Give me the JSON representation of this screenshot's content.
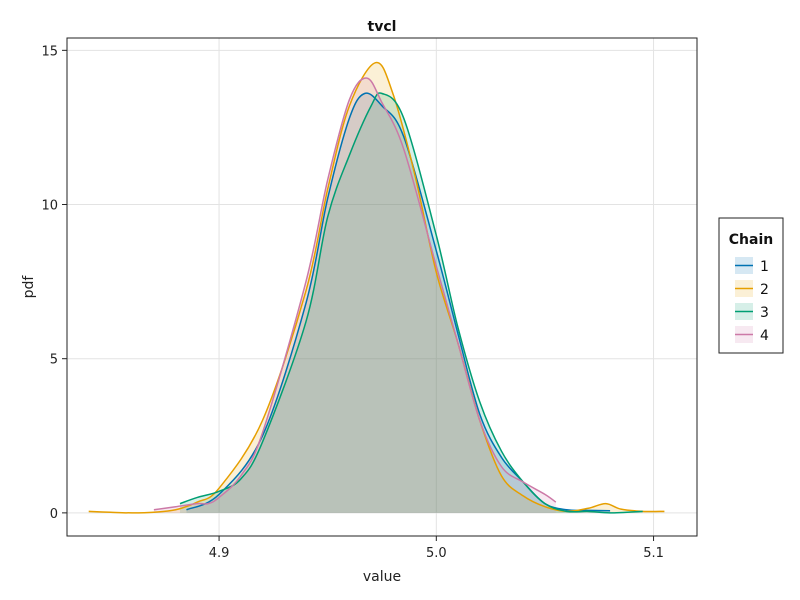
{
  "chart_data": {
    "type": "area",
    "title": "tvcl",
    "xlabel": "value",
    "ylabel": "pdf",
    "xlim": [
      4.83,
      5.12
    ],
    "ylim": [
      -0.75,
      15.4
    ],
    "xticks": [
      4.9,
      5.0,
      5.1
    ],
    "xtick_labels": [
      "4.9",
      "5.0",
      "5.1"
    ],
    "yticks": [
      0,
      5,
      10,
      15
    ],
    "ytick_labels": [
      "0",
      "5",
      "10",
      "15"
    ],
    "grid": true,
    "legend": {
      "title": "Chain",
      "placement": "right"
    },
    "series": [
      {
        "name": "1",
        "color": "#0072b2",
        "x": [
          4.885,
          4.9,
          4.92,
          4.94,
          4.95,
          4.96,
          4.967,
          4.975,
          4.985,
          5.0,
          5.01,
          5.02,
          5.03,
          5.04,
          5.05,
          5.06,
          5.07,
          5.08
        ],
        "y": [
          0.1,
          0.6,
          2.5,
          6.8,
          10.2,
          12.8,
          13.6,
          13.2,
          12.2,
          8.5,
          5.8,
          3.2,
          1.8,
          1.0,
          0.3,
          0.1,
          0.08,
          0.07
        ]
      },
      {
        "name": "2",
        "color": "#e69f00",
        "x": [
          4.84,
          4.85,
          4.86,
          4.87,
          4.88,
          4.89,
          4.9,
          4.92,
          4.94,
          4.95,
          4.96,
          4.972,
          4.98,
          4.99,
          5.0,
          5.01,
          5.02,
          5.03,
          5.04,
          5.05,
          5.06,
          5.07,
          5.078,
          5.085,
          5.095,
          5.105
        ],
        "y": [
          0.05,
          0.02,
          0.0,
          0.02,
          0.1,
          0.35,
          0.8,
          3.0,
          7.2,
          10.5,
          13.2,
          14.6,
          13.6,
          11.0,
          7.8,
          5.5,
          3.0,
          1.2,
          0.55,
          0.2,
          0.05,
          0.15,
          0.3,
          0.12,
          0.05,
          0.05
        ]
      },
      {
        "name": "3",
        "color": "#009e73",
        "x": [
          4.882,
          4.89,
          4.9,
          4.91,
          4.92,
          4.94,
          4.95,
          4.96,
          4.97,
          4.975,
          4.985,
          5.0,
          5.01,
          5.02,
          5.03,
          5.04,
          5.05,
          5.06,
          5.07,
          5.08,
          5.095
        ],
        "y": [
          0.3,
          0.5,
          0.7,
          1.1,
          2.3,
          6.2,
          9.6,
          11.6,
          13.2,
          13.6,
          12.8,
          9.0,
          6.0,
          3.6,
          2.0,
          1.0,
          0.3,
          0.05,
          0.05,
          0.0,
          0.05
        ]
      },
      {
        "name": "4",
        "color": "#cc79a7",
        "x": [
          4.87,
          4.88,
          4.89,
          4.895,
          4.9,
          4.91,
          4.92,
          4.94,
          4.95,
          4.96,
          4.968,
          4.975,
          4.985,
          5.0,
          5.01,
          5.02,
          5.03,
          5.04,
          5.05,
          5.055
        ],
        "y": [
          0.1,
          0.2,
          0.3,
          0.3,
          0.5,
          1.2,
          2.6,
          7.5,
          10.8,
          13.4,
          14.1,
          13.3,
          11.8,
          8.0,
          5.5,
          3.0,
          1.5,
          1.0,
          0.6,
          0.35
        ]
      }
    ]
  }
}
